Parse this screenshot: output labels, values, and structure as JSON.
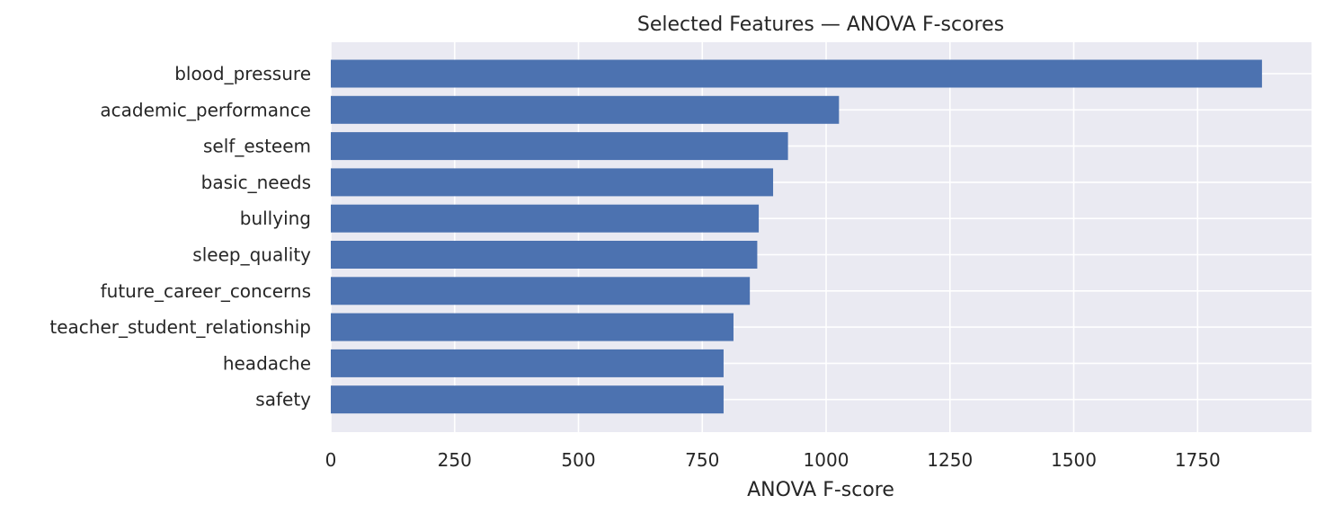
{
  "chart_data": {
    "type": "bar",
    "orientation": "horizontal",
    "title": "Selected Features — ANOVA F-scores",
    "xlabel": "ANOVA F-score",
    "ylabel": "",
    "categories": [
      "blood_pressure",
      "academic_performance",
      "self_esteem",
      "basic_needs",
      "bullying",
      "sleep_quality",
      "future_career_concerns",
      "teacher_student_relationship",
      "headache",
      "safety"
    ],
    "values": [
      1880,
      1026,
      923,
      893,
      864,
      861,
      846,
      813,
      793,
      793
    ],
    "xlim": [
      0,
      1980
    ],
    "xticks": [
      0,
      250,
      500,
      750,
      1000,
      1250,
      1500,
      1750
    ],
    "xtick_labels": [
      "0",
      "250",
      "500",
      "750",
      "1000",
      "1250",
      "1500",
      "1750"
    ],
    "grid": true,
    "legend": "none",
    "colors": {
      "bar": "#4c72b0",
      "plot_background": "#eaeaf2",
      "grid": "#ffffff",
      "text": "#262626"
    }
  }
}
